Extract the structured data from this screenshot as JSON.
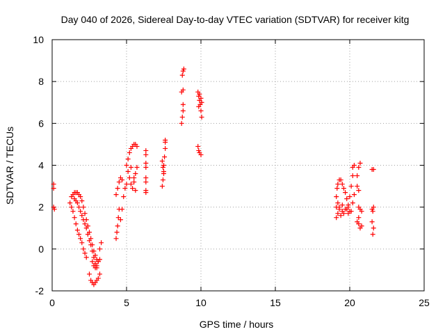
{
  "chart_data": {
    "type": "scatter",
    "title": "Day 040 of 2026, Sidereal Day-to-day VTEC variation (SDTVAR) for receiver kitg",
    "xlabel": "GPS time / hours",
    "ylabel": "SDTVAR / TECUs",
    "xlim": [
      0,
      25
    ],
    "ylim": [
      -2,
      10
    ],
    "xticks": [
      "0",
      "5",
      "10",
      "15",
      "20",
      "25"
    ],
    "yticks": [
      "-2",
      "0",
      "2",
      "4",
      "6",
      "8",
      "10"
    ],
    "grid": true,
    "marker": "+",
    "color": "#ff0000",
    "series": [
      {
        "name": "SDTVAR",
        "points": [
          [
            0.1,
            3.1
          ],
          [
            0.1,
            2.9
          ],
          [
            0.1,
            2.0
          ],
          [
            0.15,
            1.9
          ],
          [
            1.2,
            2.2
          ],
          [
            1.3,
            2.5
          ],
          [
            1.4,
            2.6
          ],
          [
            1.5,
            2.7
          ],
          [
            1.6,
            2.7
          ],
          [
            1.7,
            2.7
          ],
          [
            1.8,
            2.6
          ],
          [
            1.9,
            2.5
          ],
          [
            2.0,
            2.3
          ],
          [
            2.1,
            2.0
          ],
          [
            2.2,
            1.7
          ],
          [
            2.3,
            1.4
          ],
          [
            2.4,
            1.1
          ],
          [
            2.5,
            0.8
          ],
          [
            2.6,
            0.5
          ],
          [
            2.7,
            0.2
          ],
          [
            2.8,
            -0.1
          ],
          [
            2.9,
            -0.3
          ],
          [
            3.0,
            -0.5
          ],
          [
            3.1,
            -0.6
          ],
          [
            3.2,
            -0.5
          ],
          [
            1.3,
            2.0
          ],
          [
            1.4,
            1.8
          ],
          [
            1.5,
            1.5
          ],
          [
            1.6,
            1.2
          ],
          [
            1.7,
            0.9
          ],
          [
            1.8,
            0.7
          ],
          [
            1.9,
            0.5
          ],
          [
            2.0,
            0.3
          ],
          [
            2.1,
            0.0
          ],
          [
            2.2,
            -0.2
          ],
          [
            2.3,
            -0.4
          ],
          [
            1.5,
            2.4
          ],
          [
            1.6,
            2.3
          ],
          [
            1.7,
            2.2
          ],
          [
            1.8,
            2.0
          ],
          [
            1.9,
            1.8
          ],
          [
            2.0,
            1.6
          ],
          [
            2.1,
            1.4
          ],
          [
            2.2,
            1.2
          ],
          [
            2.3,
            1.0
          ],
          [
            2.4,
            0.7
          ],
          [
            2.5,
            0.4
          ],
          [
            2.6,
            0.2
          ],
          [
            2.7,
            -0.1
          ],
          [
            2.8,
            -0.4
          ],
          [
            2.9,
            -0.7
          ],
          [
            3.0,
            -0.9
          ],
          [
            2.5,
            -1.2
          ],
          [
            2.6,
            -1.5
          ],
          [
            2.7,
            -1.6
          ],
          [
            2.8,
            -1.7
          ],
          [
            2.9,
            -1.6
          ],
          [
            3.0,
            -1.5
          ],
          [
            3.1,
            -1.4
          ],
          [
            3.2,
            -1.2
          ],
          [
            2.7,
            -0.6
          ],
          [
            2.8,
            -0.8
          ],
          [
            2.9,
            -0.9
          ],
          [
            3.0,
            -0.8
          ],
          [
            3.1,
            -0.6
          ],
          [
            3.2,
            0.0
          ],
          [
            3.3,
            0.3
          ],
          [
            4.3,
            0.5
          ],
          [
            4.35,
            0.8
          ],
          [
            4.4,
            1.1
          ],
          [
            4.45,
            1.5
          ],
          [
            4.5,
            1.9
          ],
          [
            4.3,
            2.6
          ],
          [
            4.4,
            2.9
          ],
          [
            4.5,
            3.2
          ],
          [
            4.6,
            3.4
          ],
          [
            4.7,
            3.3
          ],
          [
            4.6,
            1.4
          ],
          [
            4.7,
            1.9
          ],
          [
            4.8,
            2.5
          ],
          [
            4.9,
            2.9
          ],
          [
            5.0,
            3.1
          ],
          [
            5.0,
            4.0
          ],
          [
            5.1,
            4.3
          ],
          [
            5.2,
            4.6
          ],
          [
            5.3,
            4.8
          ],
          [
            5.4,
            4.9
          ],
          [
            5.5,
            5.0
          ],
          [
            5.6,
            5.0
          ],
          [
            5.7,
            4.9
          ],
          [
            5.2,
            3.4
          ],
          [
            5.3,
            3.1
          ],
          [
            5.4,
            2.9
          ],
          [
            5.5,
            3.2
          ],
          [
            5.6,
            3.6
          ],
          [
            5.7,
            3.9
          ],
          [
            5.1,
            3.7
          ],
          [
            5.3,
            3.9
          ],
          [
            5.5,
            3.4
          ],
          [
            5.6,
            2.8
          ],
          [
            6.3,
            4.7
          ],
          [
            6.3,
            4.5
          ],
          [
            6.3,
            4.1
          ],
          [
            6.3,
            3.9
          ],
          [
            6.3,
            3.4
          ],
          [
            6.3,
            3.2
          ],
          [
            6.3,
            2.8
          ],
          [
            6.3,
            2.7
          ],
          [
            7.4,
            3.0
          ],
          [
            7.45,
            3.3
          ],
          [
            7.5,
            3.7
          ],
          [
            7.5,
            4.0
          ],
          [
            7.55,
            4.4
          ],
          [
            7.6,
            4.8
          ],
          [
            7.6,
            5.1
          ],
          [
            7.6,
            5.2
          ],
          [
            7.4,
            4.2
          ],
          [
            7.45,
            3.9
          ],
          [
            7.5,
            3.6
          ],
          [
            8.7,
            6.0
          ],
          [
            8.75,
            6.3
          ],
          [
            8.8,
            6.6
          ],
          [
            8.8,
            6.9
          ],
          [
            8.7,
            7.5
          ],
          [
            8.8,
            7.6
          ],
          [
            8.75,
            8.3
          ],
          [
            8.8,
            8.5
          ],
          [
            8.85,
            8.6
          ],
          [
            9.8,
            7.5
          ],
          [
            9.85,
            7.3
          ],
          [
            9.9,
            7.1
          ],
          [
            9.95,
            6.9
          ],
          [
            10.0,
            6.6
          ],
          [
            10.05,
            6.3
          ],
          [
            9.9,
            7.4
          ],
          [
            10.0,
            7.2
          ],
          [
            10.05,
            7.0
          ],
          [
            9.85,
            6.8
          ],
          [
            9.8,
            4.9
          ],
          [
            9.85,
            4.7
          ],
          [
            9.9,
            4.6
          ],
          [
            10.0,
            4.5
          ],
          [
            19.1,
            1.5
          ],
          [
            19.2,
            1.7
          ],
          [
            19.3,
            1.9
          ],
          [
            19.1,
            2.0
          ],
          [
            19.2,
            2.2
          ],
          [
            19.1,
            2.5
          ],
          [
            19.15,
            2.9
          ],
          [
            19.2,
            3.1
          ],
          [
            19.3,
            3.3
          ],
          [
            19.4,
            3.3
          ],
          [
            19.5,
            3.1
          ],
          [
            19.6,
            2.9
          ],
          [
            19.7,
            2.7
          ],
          [
            19.8,
            2.4
          ],
          [
            19.9,
            2.1
          ],
          [
            20.0,
            1.8
          ],
          [
            19.5,
            1.8
          ],
          [
            19.7,
            1.9
          ],
          [
            19.9,
            2.0
          ],
          [
            20.0,
            2.5
          ],
          [
            20.1,
            3.0
          ],
          [
            20.2,
            3.5
          ],
          [
            20.2,
            3.9
          ],
          [
            20.3,
            4.0
          ],
          [
            19.3,
            2.0
          ],
          [
            19.5,
            2.1
          ],
          [
            19.8,
            1.9
          ],
          [
            20.2,
            2.2
          ],
          [
            20.3,
            2.6
          ],
          [
            19.4,
            1.6
          ],
          [
            19.6,
            1.7
          ],
          [
            19.9,
            1.7
          ],
          [
            20.1,
            1.8
          ],
          [
            20.5,
            3.5
          ],
          [
            20.6,
            3.9
          ],
          [
            20.7,
            4.1
          ],
          [
            20.5,
            3.0
          ],
          [
            20.6,
            2.8
          ],
          [
            20.6,
            1.2
          ],
          [
            20.7,
            1.0
          ],
          [
            20.8,
            1.1
          ],
          [
            20.6,
            1.5
          ],
          [
            20.7,
            1.9
          ],
          [
            20.8,
            1.8
          ],
          [
            20.6,
            2.0
          ],
          [
            20.5,
            1.3
          ],
          [
            21.5,
            3.8
          ],
          [
            21.6,
            3.8
          ],
          [
            21.5,
            1.9
          ],
          [
            21.55,
            1.8
          ],
          [
            21.5,
            1.3
          ],
          [
            21.6,
            1.0
          ],
          [
            21.55,
            0.7
          ],
          [
            21.6,
            2.0
          ]
        ]
      }
    ]
  }
}
